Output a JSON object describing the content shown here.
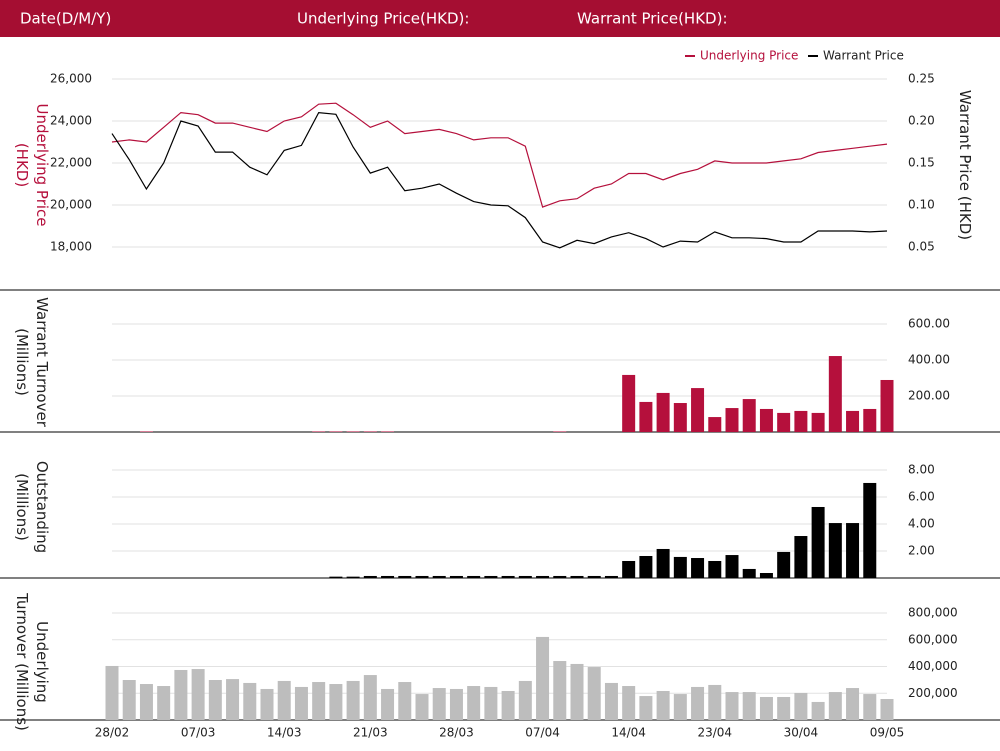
{
  "header": {
    "fields": [
      "Date(D/M/Y)",
      "Underlying Price(HKD):",
      "Warrant Price(HKD):"
    ]
  },
  "chart_data": [
    {
      "type": "line",
      "y_label": [
        "Underlying Price",
        "(HKD)"
      ],
      "y2_label": [
        "Warrant  Price (HKD)"
      ],
      "ylim": [
        18000,
        26000
      ],
      "yticks": [
        {
          "value": 18000,
          "label": "18,000"
        },
        {
          "value": 20000,
          "label": "20,000"
        },
        {
          "value": 22000,
          "label": "22,000"
        },
        {
          "value": 24000,
          "label": "24,000"
        },
        {
          "value": 26000,
          "label": "26,000"
        }
      ],
      "y2lim": [
        0.05,
        0.25
      ],
      "y2ticks": [
        0.05,
        {
          "value": 0.1,
          "label": "0.10"
        },
        0.15,
        {
          "value": 0.2,
          "label": "0.20"
        },
        0.25
      ],
      "grid": true,
      "legend": "top-right",
      "series": [
        {
          "name": "Underlying Price",
          "color": "#b5103c",
          "values": [
            23000,
            23100,
            23000,
            23700,
            24400,
            24300,
            23900,
            23900,
            23700,
            23500,
            24000,
            24200,
            24800,
            24850,
            24300,
            23700,
            24000,
            23400,
            23500,
            23600,
            23400,
            23100,
            23200,
            23200,
            22800,
            19900,
            20200,
            20300,
            20800,
            21000,
            21500,
            21500,
            21200,
            21500,
            21700,
            22100,
            22000,
            22000,
            22000,
            22100,
            22200,
            22500,
            22600,
            22700,
            22800,
            22900
          ]
        },
        {
          "name": "Warrant Price",
          "color": "#000000",
          "axis": "y2",
          "values": [
            0.185,
            0.154,
            0.119,
            0.15,
            0.2,
            0.194,
            0.163,
            0.163,
            0.145,
            0.136,
            0.165,
            0.171,
            0.21,
            0.208,
            0.169,
            0.138,
            0.145,
            0.117,
            0.12,
            0.125,
            0.114,
            0.104,
            0.1,
            0.099,
            0.085,
            0.056,
            0.049,
            0.058,
            0.054,
            0.062,
            0.067,
            0.06,
            0.05,
            0.057,
            0.056,
            0.068,
            0.061,
            0.061,
            0.06,
            0.056,
            0.056,
            0.069,
            0.069,
            0.069,
            0.068,
            0.069
          ]
        }
      ]
    },
    {
      "type": "bar",
      "y_label": [
        "Warrant  Turnover",
        "(Millions)"
      ],
      "color": "#b5103c",
      "ylim": [
        0,
        600
      ],
      "yticks": [
        {
          "value": 200,
          "label": "200.00"
        },
        {
          "value": 400,
          "label": "400.00"
        },
        {
          "value": 600,
          "label": "600.00"
        }
      ],
      "grid": true,
      "values": [
        0,
        0,
        3,
        0,
        0,
        0,
        0,
        0,
        0,
        0,
        0,
        0,
        3,
        3,
        3,
        3,
        3,
        0,
        0,
        0,
        0,
        0,
        0,
        0,
        0,
        0,
        3,
        0,
        0,
        0,
        317,
        167,
        217,
        161,
        244,
        83,
        133,
        183,
        128,
        106,
        117,
        106,
        422,
        117,
        128,
        289
      ]
    },
    {
      "type": "bar",
      "y_label": [
        "Outstanding",
        "(Millions)"
      ],
      "color": "#000000",
      "ylim": [
        0,
        8
      ],
      "yticks": [
        {
          "value": 2,
          "label": "2.00"
        },
        {
          "value": 4,
          "label": "4.00"
        },
        {
          "value": 6,
          "label": "6.00"
        },
        {
          "value": 8,
          "label": "8.00"
        }
      ],
      "grid": true,
      "values": [
        0,
        0,
        0,
        0,
        0,
        0,
        0,
        0,
        0,
        0,
        0,
        0,
        0,
        0.1,
        0.1,
        0.15,
        0.15,
        0.15,
        0.15,
        0.15,
        0.15,
        0.15,
        0.15,
        0.15,
        0.15,
        0.15,
        0.15,
        0.15,
        0.15,
        0.15,
        1.26,
        1.63,
        2.15,
        1.56,
        1.48,
        1.26,
        1.7,
        0.67,
        0.37,
        1.93,
        3.11,
        5.26,
        4.07,
        4.07,
        7.04,
        0
      ]
    },
    {
      "type": "bar",
      "y_label": [
        "Underlying",
        "Turnover (Millions)"
      ],
      "color": "#bdbdbd",
      "ylim": [
        0,
        800000
      ],
      "yticks": [
        {
          "value": 200000,
          "label": "200,000"
        },
        {
          "value": 400000,
          "label": "400,000"
        },
        {
          "value": 600000,
          "label": "600,000"
        },
        {
          "value": 800000,
          "label": "800,000"
        }
      ],
      "grid": true,
      "categories": [
        "28/02",
        null,
        null,
        null,
        null,
        "07/03",
        null,
        null,
        null,
        null,
        "14/03",
        null,
        null,
        null,
        null,
        "21/03",
        null,
        null,
        null,
        null,
        "28/03",
        null,
        null,
        null,
        null,
        "07/04",
        null,
        null,
        null,
        null,
        "14/04",
        null,
        null,
        null,
        null,
        "23/04",
        null,
        null,
        null,
        null,
        "30/04",
        null,
        null,
        null,
        null,
        "09/05"
      ],
      "values": [
        404000,
        299000,
        269000,
        254000,
        374000,
        381000,
        299000,
        306000,
        277000,
        232000,
        292000,
        247000,
        284000,
        269000,
        292000,
        336000,
        232000,
        284000,
        194000,
        239000,
        232000,
        254000,
        247000,
        217000,
        292000,
        621000,
        441000,
        419000,
        396000,
        277000,
        254000,
        179000,
        217000,
        194000,
        247000,
        262000,
        209000,
        209000,
        172000,
        172000,
        202000,
        135000,
        209000,
        239000,
        194000,
        157000
      ]
    }
  ]
}
